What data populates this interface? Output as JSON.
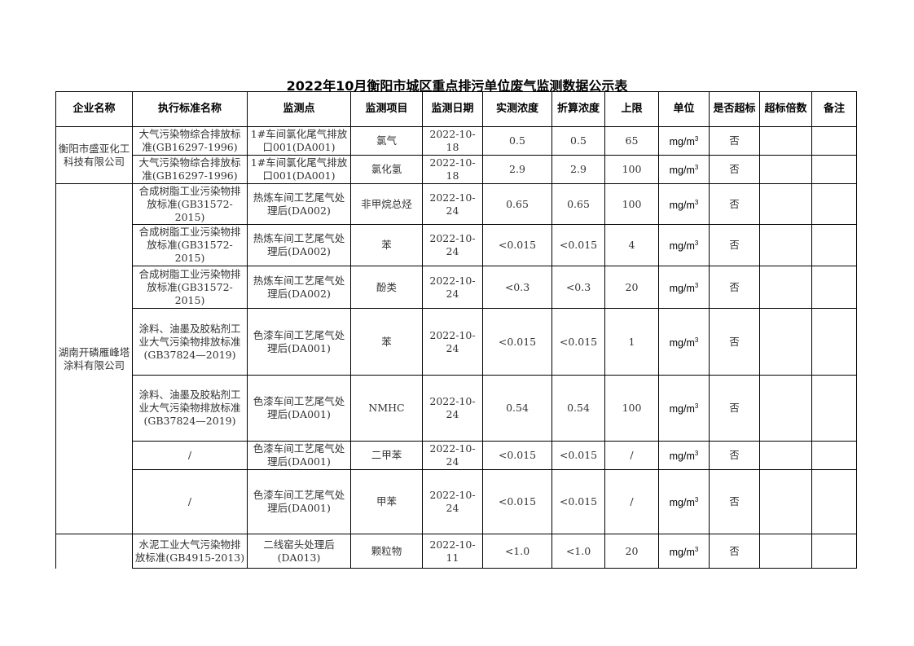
{
  "title": "2022年10月衡阳市城区重点排污单位废气监测数据公示表",
  "headers": [
    "企业名称",
    "执行标准名称",
    "监测点",
    "监测项目",
    "监测日期",
    "实测浓度",
    "折算浓度",
    "上限",
    "单位",
    "是否超标",
    "超标倍数",
    "备注"
  ],
  "unit_base": "mg/m",
  "unit_sup": "3",
  "companies": [
    {
      "name": "衡阳市盛亚化工科技有限公司",
      "rows": [
        {
          "standard": "大气污染物综合排放标准(GB16297-1996)",
          "point": "1#车间氯化尾气排放口001(DA001)",
          "item": "氯气",
          "date": "2022-10-18",
          "measured": "0.5",
          "converted": "0.5",
          "limit": "65",
          "exceed": "否",
          "times": "",
          "note": ""
        },
        {
          "standard": "大气污染物综合排放标准(GB16297-1996)",
          "point": "1#车间氯化尾气排放口001(DA001)",
          "item": "氯化氢",
          "date": "2022-10-18",
          "measured": "2.9",
          "converted": "2.9",
          "limit": "100",
          "exceed": "否",
          "times": "",
          "note": ""
        }
      ]
    },
    {
      "name": "湖南开磷雁峰塔涂料有限公司",
      "rows": [
        {
          "standard": "合成树脂工业污染物排放标准(GB31572-2015)",
          "point": "热炼车间工艺尾气处理后(DA002)",
          "item": "非甲烷总烃",
          "date": "2022-10-24",
          "measured": "0.65",
          "converted": "0.65",
          "limit": "100",
          "exceed": "否",
          "times": "",
          "note": ""
        },
        {
          "standard": "合成树脂工业污染物排放标准(GB31572-2015)",
          "point": "热炼车间工艺尾气处理后(DA002)",
          "item": "苯",
          "date": "2022-10-24",
          "measured": "<0.015",
          "converted": "<0.015",
          "limit": "4",
          "exceed": "否",
          "times": "",
          "note": ""
        },
        {
          "standard": "合成树脂工业污染物排放标准(GB31572-2015)",
          "point": "热炼车间工艺尾气处理后(DA002)",
          "item": "酚类",
          "date": "2022-10-24",
          "measured": "<0.3",
          "converted": "<0.3",
          "limit": "20",
          "exceed": "否",
          "times": "",
          "note": ""
        },
        {
          "standard": "涂料、油墨及胶粘剂工业大气污染物排放标准(GB37824—2019)",
          "point": "色漆车间工艺尾气处理后(DA001)",
          "item": "苯",
          "date": "2022-10-24",
          "measured": "<0.015",
          "converted": "<0.015",
          "limit": "1",
          "exceed": "否",
          "times": "",
          "note": ""
        },
        {
          "standard": "涂料、油墨及胶粘剂工业大气污染物排放标准(GB37824—2019)",
          "point": "色漆车间工艺尾气处理后(DA001)",
          "item": "NMHC",
          "date": "2022-10-24",
          "measured": "0.54",
          "converted": "0.54",
          "limit": "100",
          "exceed": "否",
          "times": "",
          "note": ""
        },
        {
          "standard": "/",
          "point": "色漆车间工艺尾气处理后(DA001)",
          "item": "二甲苯",
          "date": "2022-10-24",
          "measured": "<0.015",
          "converted": "<0.015",
          "limit": "/",
          "exceed": "否",
          "times": "",
          "note": ""
        },
        {
          "standard": "/",
          "point": "色漆车间工艺尾气处理后(DA001)",
          "item": "甲苯",
          "date": "2022-10-24",
          "measured": "<0.015",
          "converted": "<0.015",
          "limit": "/",
          "exceed": "否",
          "times": "",
          "note": ""
        }
      ]
    },
    {
      "name": "",
      "rows": [
        {
          "standard": "水泥工业大气污染物排放标准(GB4915-2013)",
          "point": "二线窑头处理后(DA013)",
          "item": "颗粒物",
          "date": "2022-10-11",
          "measured": "<1.0",
          "converted": "<1.0",
          "limit": "20",
          "exceed": "否",
          "times": "",
          "note": ""
        }
      ]
    }
  ]
}
